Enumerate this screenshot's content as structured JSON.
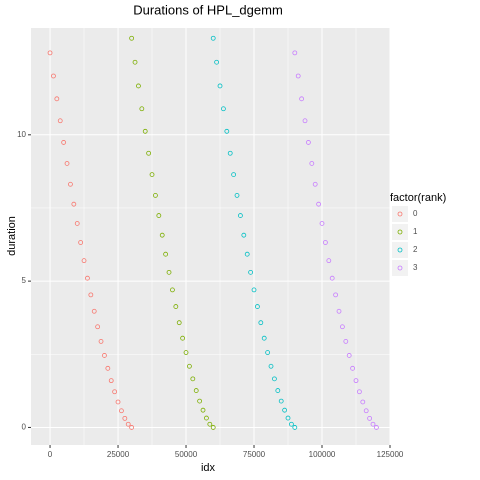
{
  "chart_data": {
    "type": "scatter",
    "title": "Durations of HPL_dgemm",
    "x_label": "idx",
    "y_label": "duration",
    "legend_title": "factor(rank)",
    "legend_position": "right",
    "grid": true,
    "xlim": [
      -7000,
      125000
    ],
    "xticks": [
      0,
      25000,
      50000,
      75000,
      100000,
      125000
    ],
    "ylim": [
      -0.6,
      13.65
    ],
    "yticks": [
      0,
      5,
      10
    ],
    "series": [
      {
        "name": "0",
        "color": "#F8766D",
        "x": [
          0,
          1250,
          2500,
          3750,
          5000,
          6250,
          7500,
          8750,
          10000,
          11250,
          12500,
          13750,
          15000,
          16250,
          17500,
          18750,
          20000,
          21250,
          22500,
          23750,
          25000,
          26250,
          27500,
          28750,
          30000
        ],
        "values": [
          12.8,
          12.01,
          11.23,
          10.48,
          9.74,
          9.02,
          8.31,
          7.63,
          6.97,
          6.32,
          5.7,
          5.1,
          4.53,
          3.97,
          3.44,
          2.94,
          2.46,
          2.02,
          1.6,
          1.22,
          0.87,
          0.57,
          0.31,
          0.11,
          0
        ]
      },
      {
        "name": "1",
        "color": "#7CAE00",
        "x": [
          30000,
          31250,
          32500,
          33750,
          35000,
          36250,
          37500,
          38750,
          40000,
          41250,
          42500,
          43750,
          45000,
          46250,
          47500,
          48750,
          50000,
          51250,
          52500,
          53750,
          55000,
          56250,
          57500,
          58750,
          60000
        ],
        "values": [
          13.3,
          12.48,
          11.67,
          10.89,
          10.12,
          9.37,
          8.64,
          7.93,
          7.24,
          6.57,
          5.92,
          5.3,
          4.7,
          4.13,
          3.58,
          3.05,
          2.56,
          2.09,
          1.66,
          1.26,
          0.9,
          0.59,
          0.32,
          0.11,
          0
        ]
      },
      {
        "name": "2",
        "color": "#00BFC4",
        "x": [
          60000,
          61250,
          62500,
          63750,
          65000,
          66250,
          67500,
          68750,
          70000,
          71250,
          72500,
          73750,
          75000,
          76250,
          77500,
          78750,
          80000,
          81250,
          82500,
          83750,
          85000,
          86250,
          87500,
          88750,
          90000
        ],
        "values": [
          13.3,
          12.48,
          11.67,
          10.89,
          10.12,
          9.37,
          8.64,
          7.93,
          7.24,
          6.57,
          5.92,
          5.3,
          4.7,
          4.13,
          3.58,
          3.05,
          2.56,
          2.09,
          1.66,
          1.26,
          0.9,
          0.59,
          0.32,
          0.11,
          0
        ]
      },
      {
        "name": "3",
        "color": "#C77CFF",
        "x": [
          90000,
          91250,
          92500,
          93750,
          95000,
          96250,
          97500,
          98750,
          100000,
          101250,
          102500,
          103750,
          105000,
          106250,
          107500,
          108750,
          110000,
          111250,
          112500,
          113750,
          115000,
          116250,
          117500,
          118750,
          120000
        ],
        "values": [
          12.8,
          12.01,
          11.23,
          10.48,
          9.74,
          9.02,
          8.31,
          7.63,
          6.97,
          6.32,
          5.7,
          5.1,
          4.53,
          3.97,
          3.44,
          2.94,
          2.46,
          2.02,
          1.6,
          1.22,
          0.87,
          0.57,
          0.31,
          0.11,
          0
        ]
      }
    ]
  }
}
